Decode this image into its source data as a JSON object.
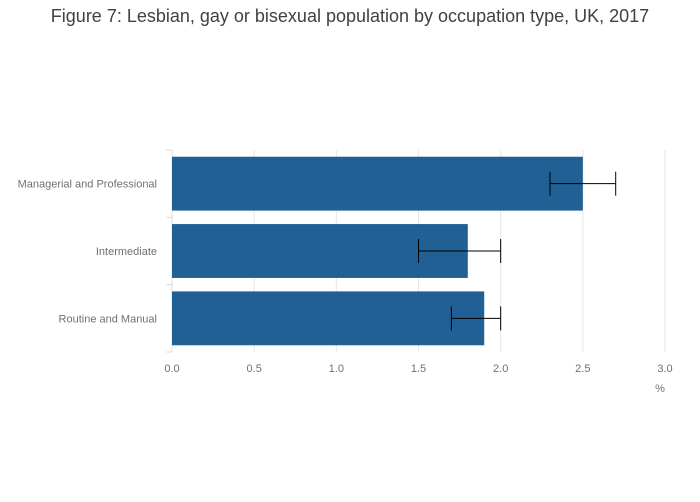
{
  "chart_data": {
    "type": "bar",
    "orientation": "horizontal",
    "title": "Figure 7: Lesbian, gay or bisexual population by occupation type, UK, 2017",
    "xlabel": "%",
    "ylabel": "",
    "categories": [
      "Managerial and Professional",
      "Intermediate",
      "Routine and Manual"
    ],
    "values": [
      2.5,
      1.8,
      1.9
    ],
    "error_bars": [
      {
        "lower": 2.3,
        "upper": 2.7
      },
      {
        "lower": 1.5,
        "upper": 2.0
      },
      {
        "lower": 1.7,
        "upper": 2.0
      }
    ],
    "xlim": [
      0,
      3.0
    ],
    "xticks": [
      "0.0",
      "0.5",
      "1.0",
      "1.5",
      "2.0",
      "2.5",
      "3.0"
    ],
    "grid": true,
    "colors": {
      "bar": "#206095",
      "error": "#000000",
      "grid": "#e6e6e6",
      "text": "#707071",
      "title": "#414042"
    }
  }
}
